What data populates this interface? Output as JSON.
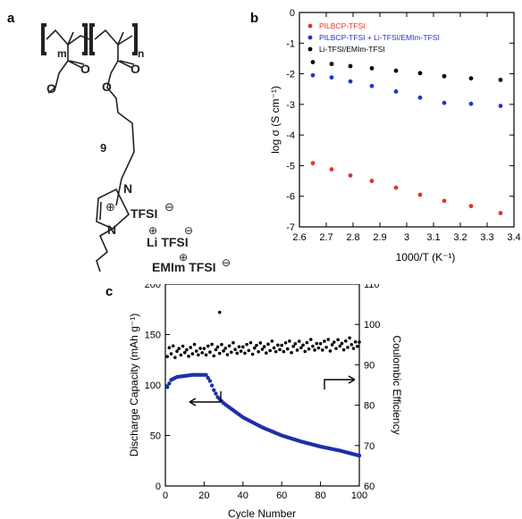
{
  "panels": {
    "a": "a",
    "b": "b",
    "c": "c"
  },
  "structure": {
    "m": "m",
    "n": "n",
    "nine": "9",
    "o1": "O",
    "o2": "O",
    "o3": "O",
    "o4": "O",
    "n_top": "N",
    "n_bottom": "N",
    "plus": "⊕",
    "tfsi1": "TFSI",
    "li_tfsi": "Li TFSI",
    "emim_tfsi": "EMIm TFSI",
    "minus": "⊖",
    "plus_sign": "⊕"
  },
  "chart_data": [
    {
      "type": "scatter",
      "panel": "b",
      "xlabel": "1000/T (K⁻¹)",
      "ylabel": "log σ (S cm⁻¹)",
      "xlim": [
        2.6,
        3.4
      ],
      "ylim": [
        -7,
        0
      ],
      "xticks": [
        "2.6",
        "2.7",
        "2.8",
        "2.9",
        "3",
        "3.1",
        "3.2",
        "3.3",
        "3.4"
      ],
      "yticks": [
        "0",
        "-1",
        "-2",
        "-3",
        "-4",
        "-5",
        "-6",
        "-7"
      ],
      "legend_position": "top-left",
      "series": [
        {
          "name": "PILBCP-TFSI",
          "color": "#e8302a",
          "x": [
            2.65,
            2.72,
            2.79,
            2.87,
            2.96,
            3.05,
            3.14,
            3.24,
            3.35
          ],
          "y": [
            -4.92,
            -5.12,
            -5.32,
            -5.5,
            -5.72,
            -5.95,
            -6.15,
            -6.32,
            -6.55
          ]
        },
        {
          "name": "PILBCP-TFSI + Li-TFSI/EMIm-TFSI",
          "color": "#2233cc",
          "x": [
            2.65,
            2.72,
            2.79,
            2.87,
            2.96,
            3.05,
            3.14,
            3.24,
            3.35
          ],
          "y": [
            -2.05,
            -2.12,
            -2.25,
            -2.4,
            -2.58,
            -2.78,
            -2.95,
            -2.98,
            -3.05
          ]
        },
        {
          "name": "Li-TFSI/EMIm-TFSI",
          "color": "#000000",
          "x": [
            2.65,
            2.72,
            2.79,
            2.87,
            2.96,
            3.05,
            3.14,
            3.24,
            3.35
          ],
          "y": [
            -1.62,
            -1.68,
            -1.75,
            -1.82,
            -1.9,
            -1.98,
            -2.08,
            -2.15,
            -2.2
          ]
        }
      ]
    },
    {
      "type": "scatter",
      "panel": "c",
      "xlabel": "Cycle Number",
      "ylabel": "Discharge Capacity (mAh g⁻¹)",
      "y2label": "Coulombic Efficiency",
      "xlim": [
        0,
        100
      ],
      "ylim": [
        0,
        200
      ],
      "y2lim": [
        60,
        110
      ],
      "xticks": [
        "0",
        "20",
        "40",
        "60",
        "80",
        "100"
      ],
      "yticks": [
        "0",
        "50",
        "100",
        "150",
        "200"
      ],
      "y2ticks": [
        "60",
        "70",
        "80",
        "90",
        "100",
        "110"
      ],
      "series": [
        {
          "name": "Discharge Capacity",
          "color": "#1f2fa8",
          "axis": "left",
          "anchors_x": [
            1,
            3,
            6,
            10,
            14,
            18,
            21,
            23,
            25,
            27,
            30,
            35,
            40,
            50,
            60,
            70,
            80,
            90,
            100
          ],
          "anchors_y": [
            98,
            105,
            108,
            109,
            110,
            110,
            110,
            104,
            95,
            88,
            82,
            75,
            68,
            58,
            50,
            44,
            39,
            35,
            30
          ]
        },
        {
          "name": "Coulombic Efficiency",
          "color": "#000000",
          "axis": "right",
          "base_x": [
            0,
            100
          ],
          "base_y": [
            93,
            95
          ],
          "outliers": [
            {
              "x": 28,
              "y": 103
            }
          ]
        }
      ],
      "annotations": [
        "arrow-left-to-capacity-axis",
        "arrow-right-to-efficiency-axis"
      ]
    }
  ]
}
